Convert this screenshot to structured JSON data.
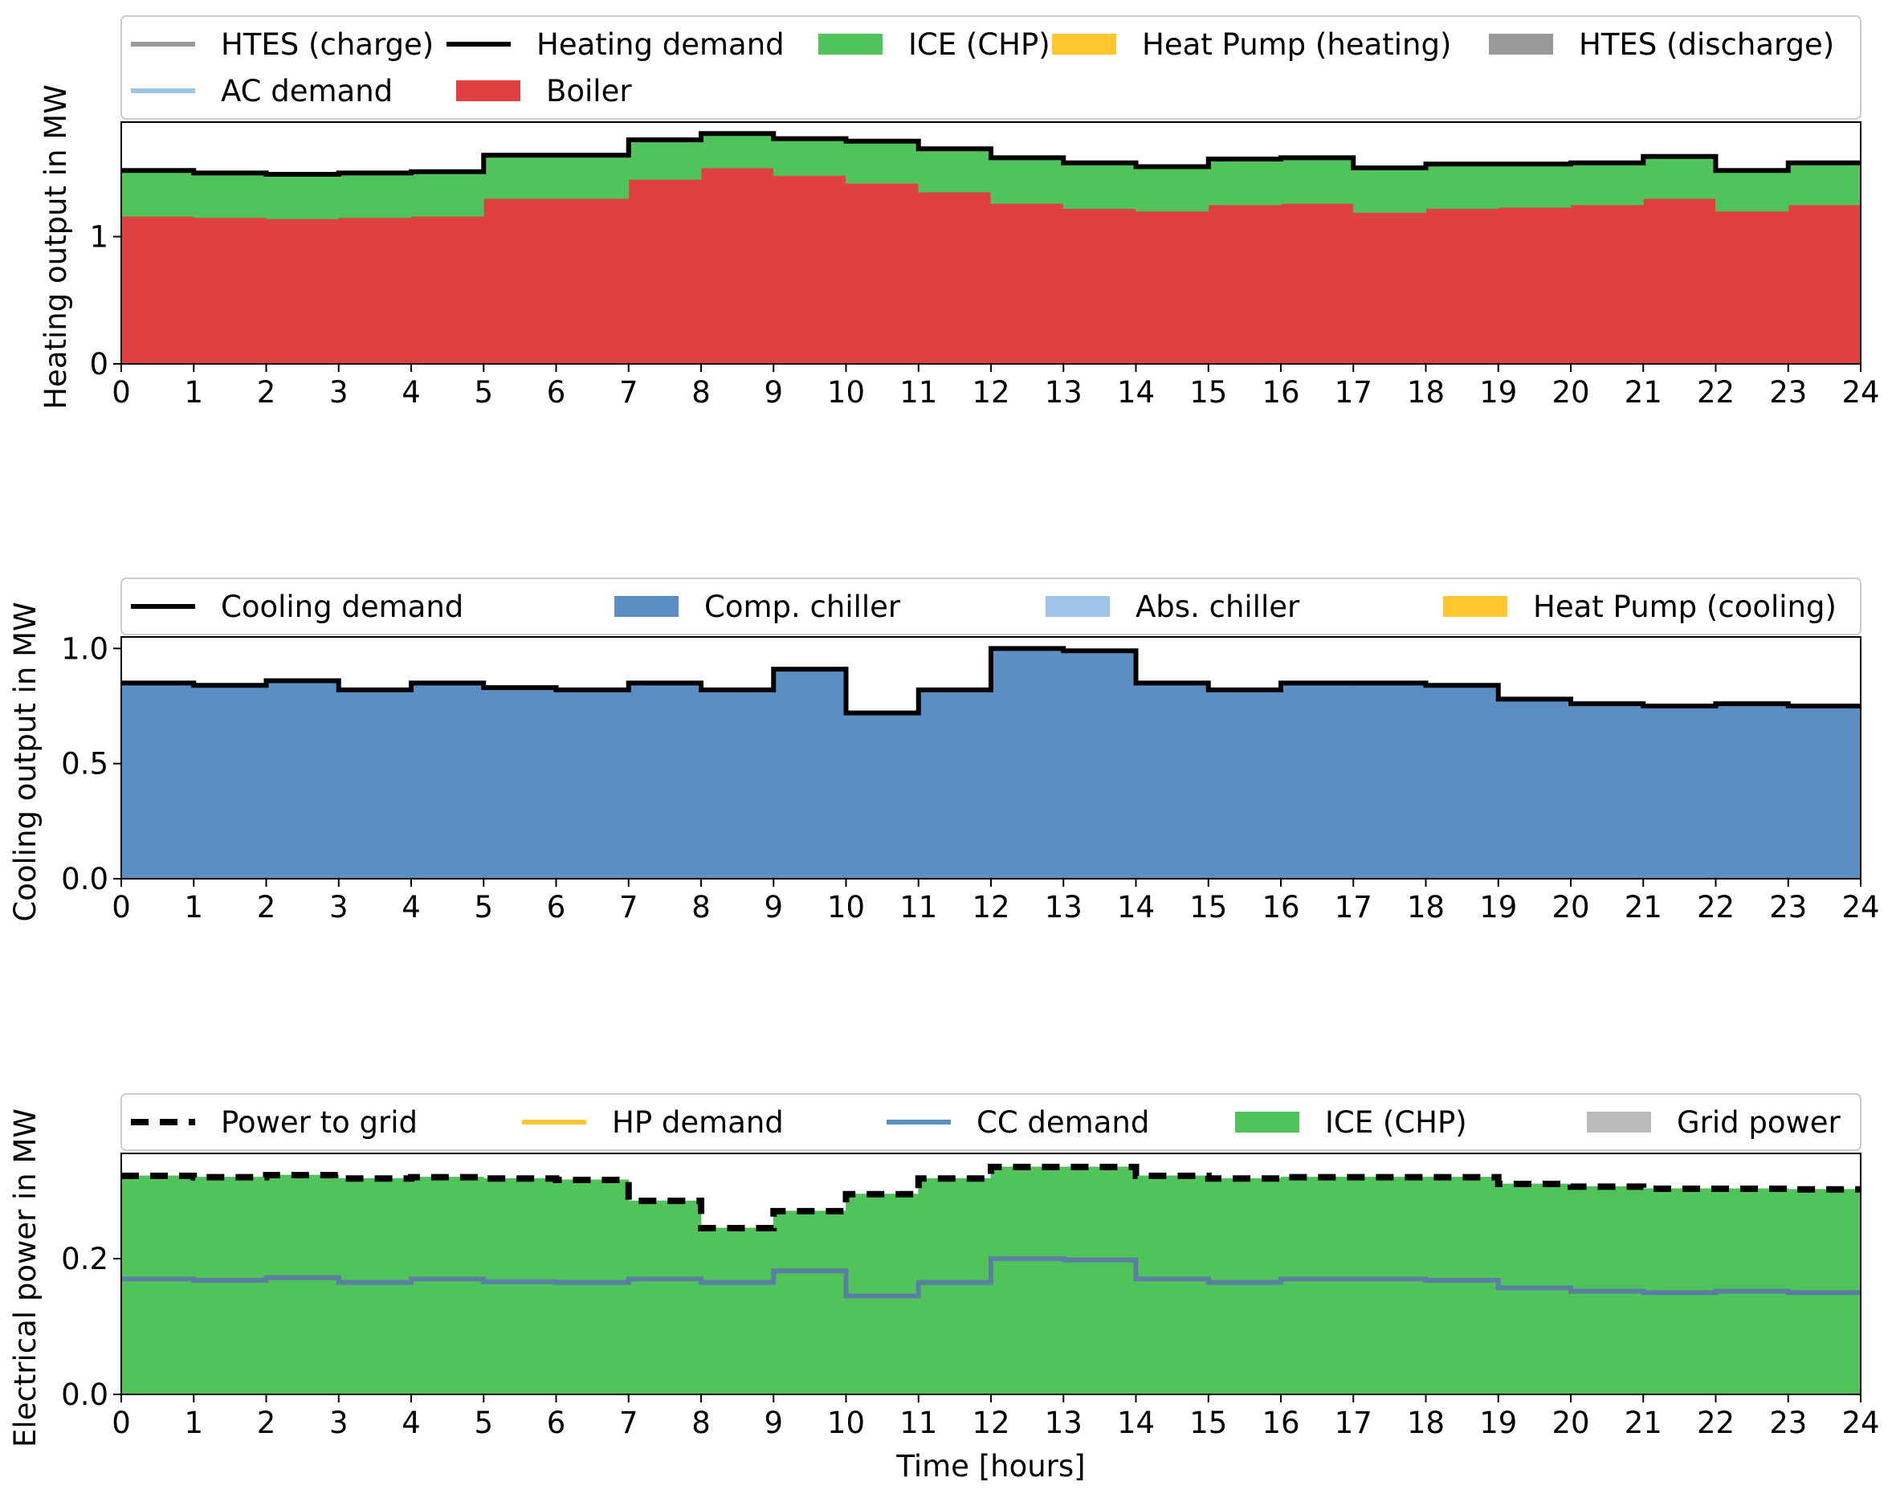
{
  "chart_data": [
    {
      "type": "area",
      "step": true,
      "ylabel": "Heating output in MW",
      "xlabel": "",
      "xlim": [
        0,
        24
      ],
      "ylim": [
        0,
        1.9
      ],
      "xticks": [
        "0",
        "1",
        "2",
        "3",
        "4",
        "5",
        "6",
        "7",
        "8",
        "9",
        "10",
        "11",
        "12",
        "13",
        "14",
        "15",
        "16",
        "17",
        "18",
        "19",
        "20",
        "21",
        "22",
        "23",
        "24"
      ],
      "yticks": [
        {
          "v": 0,
          "label": "0"
        },
        {
          "v": 1,
          "label": "1"
        }
      ],
      "grid": false,
      "legend": {
        "placement": "above-top",
        "rows": [
          [
            {
              "label": "HTES (charge)",
              "kind": "line",
              "color": "#999999"
            },
            {
              "label": "Heating demand",
              "kind": "line",
              "color": "#000000"
            },
            {
              "label": "ICE (CHP)",
              "kind": "patch",
              "color": "#50C35A"
            },
            {
              "label": "Heat Pump (heating)",
              "kind": "patch",
              "color": "#FFC62F"
            },
            {
              "label": "HTES (discharge)",
              "kind": "patch",
              "color": "#999999"
            }
          ],
          [
            {
              "label": "AC demand",
              "kind": "line",
              "color": "#9EC4E8"
            },
            {
              "label": "Boiler",
              "kind": "patch",
              "color": "#E04040"
            }
          ]
        ]
      },
      "stack": [
        {
          "name": "Boiler",
          "color": "#E04040",
          "values": [
            1.16,
            1.15,
            1.14,
            1.15,
            1.16,
            1.3,
            1.3,
            1.45,
            1.54,
            1.48,
            1.42,
            1.35,
            1.26,
            1.22,
            1.2,
            1.25,
            1.26,
            1.19,
            1.22,
            1.23,
            1.25,
            1.3,
            1.2,
            1.25
          ]
        },
        {
          "name": "ICE (CHP)",
          "color": "#50C35A",
          "values": [
            0.36,
            0.35,
            0.35,
            0.35,
            0.35,
            0.34,
            0.34,
            0.31,
            0.27,
            0.29,
            0.33,
            0.34,
            0.36,
            0.36,
            0.36,
            0.36,
            0.36,
            0.36,
            0.35,
            0.34,
            0.33,
            0.33,
            0.33,
            0.33
          ]
        }
      ],
      "lines": [
        {
          "name": "Heating demand",
          "color": "#000000",
          "dash": false,
          "values": [
            1.52,
            1.5,
            1.49,
            1.5,
            1.51,
            1.64,
            1.64,
            1.76,
            1.81,
            1.77,
            1.75,
            1.69,
            1.62,
            1.58,
            1.55,
            1.61,
            1.62,
            1.54,
            1.57,
            1.57,
            1.58,
            1.63,
            1.52,
            1.58
          ]
        }
      ]
    },
    {
      "type": "area",
      "step": true,
      "ylabel": "Cooling output in MW",
      "xlabel": "",
      "xlim": [
        0,
        24
      ],
      "ylim": [
        0,
        1.05
      ],
      "xticks": [
        "0",
        "1",
        "2",
        "3",
        "4",
        "5",
        "6",
        "7",
        "8",
        "9",
        "10",
        "11",
        "12",
        "13",
        "14",
        "15",
        "16",
        "17",
        "18",
        "19",
        "20",
        "21",
        "22",
        "23",
        "24"
      ],
      "yticks": [
        {
          "v": 0,
          "label": "0.0"
        },
        {
          "v": 0.5,
          "label": "0.5"
        },
        {
          "v": 1,
          "label": "1.0"
        }
      ],
      "grid": false,
      "legend": {
        "placement": "above-top",
        "rows": [
          [
            {
              "label": "Cooling demand",
              "kind": "line",
              "color": "#000000"
            },
            {
              "label": "Comp. chiller",
              "kind": "patch",
              "color": "#5B8FC3"
            },
            {
              "label": "Abs. chiller",
              "kind": "patch",
              "color": "#9EC4E8"
            },
            {
              "label": "Heat Pump (cooling)",
              "kind": "patch",
              "color": "#FFC62F"
            }
          ]
        ]
      },
      "stack": [
        {
          "name": "Comp. chiller",
          "color": "#5B8FC3",
          "values": [
            0.85,
            0.84,
            0.86,
            0.82,
            0.85,
            0.83,
            0.82,
            0.85,
            0.82,
            0.91,
            0.72,
            0.82,
            1.0,
            0.99,
            0.85,
            0.82,
            0.85,
            0.85,
            0.84,
            0.78,
            0.76,
            0.75,
            0.76,
            0.75
          ]
        }
      ],
      "lines": [
        {
          "name": "Cooling demand",
          "color": "#000000",
          "dash": false,
          "values": [
            0.85,
            0.84,
            0.86,
            0.82,
            0.85,
            0.83,
            0.82,
            0.85,
            0.82,
            0.91,
            0.72,
            0.82,
            1.0,
            0.99,
            0.85,
            0.82,
            0.85,
            0.85,
            0.84,
            0.78,
            0.76,
            0.75,
            0.76,
            0.75
          ]
        }
      ]
    },
    {
      "type": "area",
      "step": true,
      "ylabel": "Electrical power in MW",
      "xlabel": "Time [hours]",
      "xlim": [
        0,
        24
      ],
      "ylim": [
        0,
        0.355
      ],
      "xticks": [
        "0",
        "1",
        "2",
        "3",
        "4",
        "5",
        "6",
        "7",
        "8",
        "9",
        "10",
        "11",
        "12",
        "13",
        "14",
        "15",
        "16",
        "17",
        "18",
        "19",
        "20",
        "21",
        "22",
        "23",
        "24"
      ],
      "yticks": [
        {
          "v": 0,
          "label": "0.0"
        },
        {
          "v": 0.2,
          "label": "0.2"
        }
      ],
      "grid": false,
      "legend": {
        "placement": "above-top",
        "rows": [
          [
            {
              "label": "Power to grid",
              "kind": "dash",
              "color": "#000000"
            },
            {
              "label": "HP demand",
              "kind": "line",
              "color": "#FFC62F"
            },
            {
              "label": "CC demand",
              "kind": "line",
              "color": "#5B8FC3"
            },
            {
              "label": "ICE (CHP)",
              "kind": "patch",
              "color": "#50C35A"
            },
            {
              "label": "Grid power",
              "kind": "patch",
              "color": "#BBBBBB"
            }
          ]
        ]
      },
      "stack": [
        {
          "name": "ICE (CHP)",
          "color": "#50C35A",
          "values": [
            0.322,
            0.32,
            0.323,
            0.318,
            0.32,
            0.318,
            0.316,
            0.285,
            0.245,
            0.27,
            0.295,
            0.318,
            0.335,
            0.335,
            0.322,
            0.318,
            0.32,
            0.32,
            0.32,
            0.31,
            0.306,
            0.303,
            0.303,
            0.302
          ]
        }
      ],
      "lines": [
        {
          "name": "Power to grid",
          "color": "#000000",
          "dash": true,
          "values": [
            0.322,
            0.32,
            0.323,
            0.318,
            0.32,
            0.318,
            0.316,
            0.285,
            0.245,
            0.27,
            0.295,
            0.318,
            0.335,
            0.335,
            0.322,
            0.318,
            0.32,
            0.32,
            0.32,
            0.31,
            0.306,
            0.303,
            0.303,
            0.302
          ]
        },
        {
          "name": "CC demand",
          "color": "#5A7FA3",
          "dash": false,
          "values": [
            0.17,
            0.168,
            0.172,
            0.165,
            0.17,
            0.166,
            0.165,
            0.17,
            0.165,
            0.182,
            0.145,
            0.165,
            0.2,
            0.198,
            0.17,
            0.165,
            0.17,
            0.17,
            0.168,
            0.157,
            0.152,
            0.15,
            0.152,
            0.15
          ]
        }
      ]
    }
  ]
}
